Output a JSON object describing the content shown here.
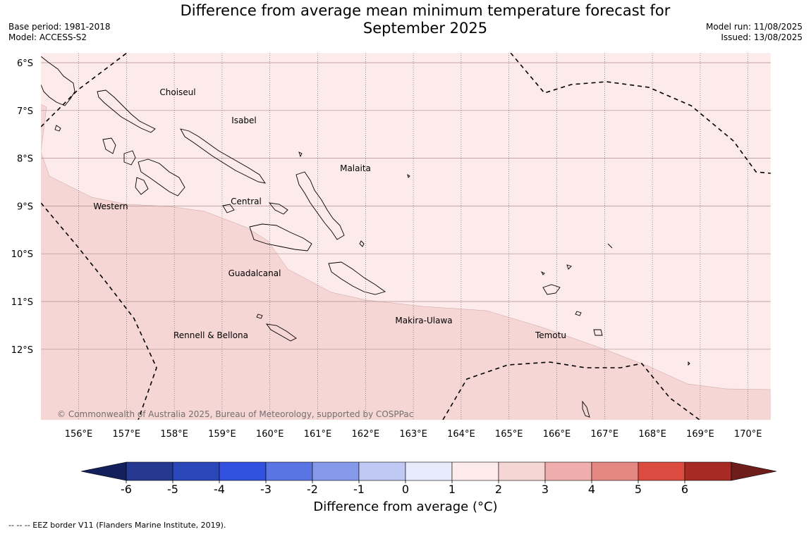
{
  "title": {
    "line1": "Difference from average mean minimum temperature forecast for",
    "line2": "September 2025"
  },
  "meta": {
    "base_period": "Base period: 1981-2018",
    "model": "Model: ACCESS-S2",
    "model_run": "Model run: 11/08/2025",
    "issued": "Issued: 13/08/2025"
  },
  "map": {
    "lat_labels": [
      "6°S",
      "7°S",
      "8°S",
      "9°S",
      "10°S",
      "11°S",
      "12°S"
    ],
    "lon_labels": [
      "156°E",
      "157°E",
      "158°E",
      "159°E",
      "160°E",
      "161°E",
      "162°E",
      "163°E",
      "164°E",
      "165°E",
      "166°E",
      "167°E",
      "168°E",
      "169°E",
      "170°E"
    ],
    "regions": [
      "Choiseul",
      "Isabel",
      "Malaita",
      "Western",
      "Central",
      "Guadalcanal",
      "Makira-Ulawa",
      "Rennell & Bellona",
      "Temotu"
    ],
    "copyright": "© Commonwealth of Australia 2025, Bureau of Meteorology, supported by COSPPac",
    "anomaly_zones": [
      {
        "range": "0 to 1",
        "color": "#fcebea"
      },
      {
        "range": "1 to 2",
        "color": "#f5d6d5"
      }
    ]
  },
  "colorbar": {
    "title": "Difference from average (°C)",
    "ticks": [
      "-6",
      "-5",
      "-4",
      "-3",
      "-2",
      "-1",
      "0",
      "1",
      "2",
      "3",
      "4",
      "5",
      "6"
    ],
    "colors": [
      "#24398f",
      "#2a46b8",
      "#3150e0",
      "#5a74e4",
      "#8599ea",
      "#c0c9f3",
      "#e8ebfc",
      "#fcebea",
      "#f5d6d5",
      "#efaeab",
      "#e58882",
      "#dc4b3f",
      "#a82a24"
    ],
    "under_color": "#14205c",
    "over_color": "#6e1d1a"
  },
  "footnote": "--  --  -- EEZ border V11 (Flanders Marine Institute, 2019)."
}
